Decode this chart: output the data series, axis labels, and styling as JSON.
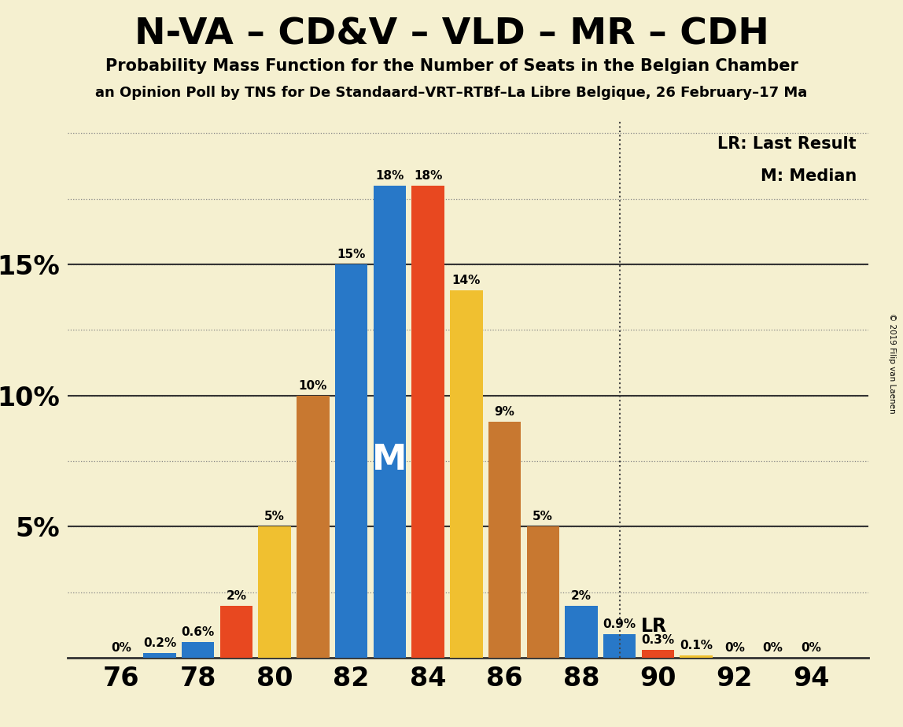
{
  "title": "N-VA – CD&V – VLD – MR – CDH",
  "subtitle": "Probability Mass Function for the Number of Seats in the Belgian Chamber",
  "subtitle2": "an Opinion Poll by TNS for De Standaard–VRT–RTBf–La Libre Belgique, 26 February–17 Ma",
  "copyright": "© 2019 Filip van Laenen",
  "lr_label": "LR: Last Result",
  "m_label": "M: Median",
  "lr_annotation": "LR",
  "m_annotation": "M",
  "background_color": "#f5f0d0",
  "seats": [
    76,
    77,
    78,
    79,
    80,
    81,
    82,
    83,
    84,
    85,
    86,
    87,
    88,
    89,
    90,
    91,
    92,
    93,
    94
  ],
  "probabilities": [
    0.0,
    0.002,
    0.006,
    0.02,
    0.05,
    0.1,
    0.15,
    0.18,
    0.18,
    0.14,
    0.09,
    0.05,
    0.02,
    0.009,
    0.003,
    0.001,
    0.0,
    0.0,
    0.0
  ],
  "labels": [
    "0%",
    "0.2%",
    "0.6%",
    "2%",
    "5%",
    "10%",
    "15%",
    "18%",
    "18%",
    "14%",
    "9%",
    "5%",
    "2%",
    "0.9%",
    "0.3%",
    "0.1%",
    "0%",
    "0%",
    "0%"
  ],
  "bar_colors": [
    "#2878c8",
    "#2878c8",
    "#2878c8",
    "#e84820",
    "#f0c030",
    "#c87830",
    "#2878c8",
    "#2878c8",
    "#e84820",
    "#f0c030",
    "#c87830",
    "#c87830",
    "#2878c8",
    "#2878c8",
    "#e84820",
    "#f0c030",
    "#2878c8",
    "#2878c8",
    "#2878c8"
  ],
  "median_seat": 83,
  "lr_seat": 89,
  "ylim_max": 0.205,
  "ytick_positions": [
    0.05,
    0.1,
    0.15
  ],
  "ytick_labels": [
    "5%",
    "10%",
    "15%"
  ],
  "xticks": [
    76,
    78,
    80,
    82,
    84,
    86,
    88,
    90,
    92,
    94
  ],
  "xlim": [
    74.6,
    95.5
  ]
}
